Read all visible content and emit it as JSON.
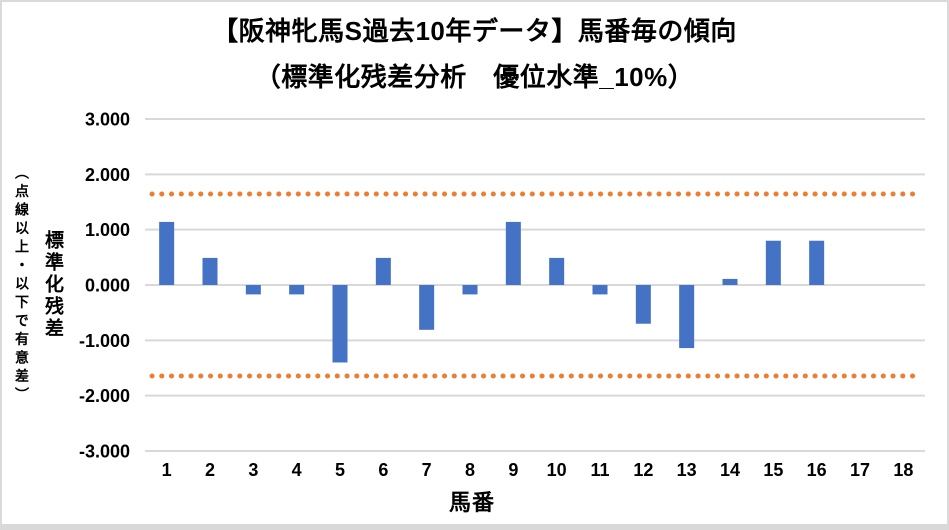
{
  "frame": {
    "background": "#FFFFFF",
    "border_color": "#D9D9D9"
  },
  "chart_data": {
    "type": "bar",
    "title": "【阪神牝馬S過去10年データ】馬番毎の傾向",
    "subtitle": "（標準化残差分析　優位水準_10%）",
    "xlabel": "馬番",
    "ylabel": "標準化残差",
    "ylabel_note": "（点線以上・以下で有意差）",
    "categories": [
      "1",
      "2",
      "3",
      "4",
      "5",
      "6",
      "7",
      "8",
      "9",
      "10",
      "11",
      "12",
      "13",
      "14",
      "15",
      "16",
      "17",
      "18"
    ],
    "values": [
      1.14,
      0.49,
      -0.17,
      -0.17,
      -1.4,
      0.49,
      -0.81,
      -0.17,
      1.14,
      0.49,
      -0.17,
      -0.7,
      -1.14,
      0.11,
      0.8,
      0.8,
      0,
      0
    ],
    "ylim": [
      -3,
      3
    ],
    "yticks": [
      {
        "value": 3,
        "label": "3.000"
      },
      {
        "value": 2,
        "label": "2.000"
      },
      {
        "value": 1,
        "label": "1.000"
      },
      {
        "value": 0,
        "label": "0.000"
      },
      {
        "value": -1,
        "label": "-1.000"
      },
      {
        "value": -2,
        "label": "-2.000"
      },
      {
        "value": -3,
        "label": "-3.000"
      }
    ],
    "thresholds": {
      "upper": 1.645,
      "lower": -1.645,
      "style": "dotted",
      "color": "#ED7D31"
    },
    "grid": true,
    "legend": null,
    "bar_color": "#4472C4",
    "gridline_color": "#D9D9D9",
    "text_color": "#000000"
  }
}
